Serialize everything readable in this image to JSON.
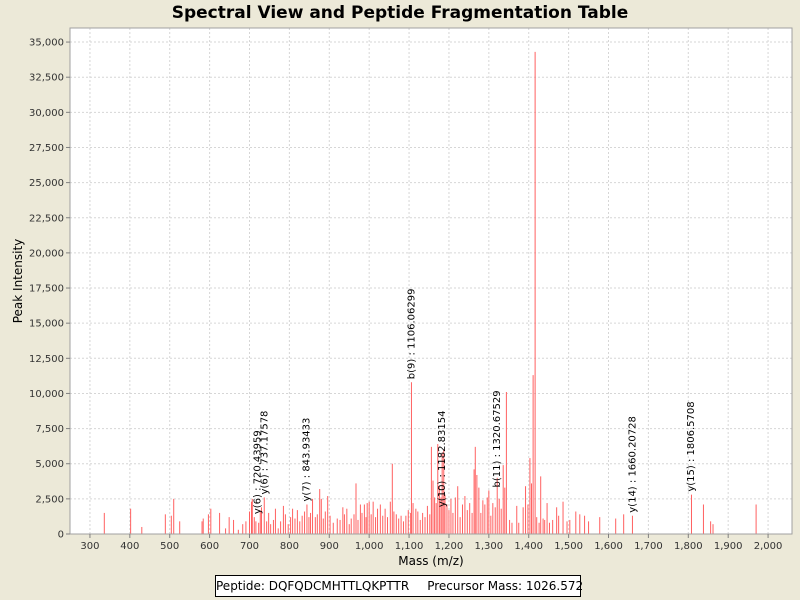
{
  "chart_data": {
    "type": "bar",
    "title": "Spectral View and Peptide Fragmentation Table",
    "xlabel": "Mass (m/z)",
    "ylabel": "Peak Intensity",
    "xlim": [
      250,
      2060
    ],
    "ylim": [
      0,
      36000
    ],
    "x_ticks": [
      300,
      400,
      500,
      600,
      700,
      800,
      900,
      1000,
      1100,
      1200,
      1300,
      1400,
      1500,
      1600,
      1700,
      1800,
      1900,
      2000
    ],
    "x_tick_labels": [
      "300",
      "400",
      "500",
      "600",
      "700",
      "800",
      "900",
      "1,000",
      "1,100",
      "1,200",
      "1,300",
      "1,400",
      "1,500",
      "1,600",
      "1,700",
      "1,800",
      "1,900",
      "2,000"
    ],
    "y_ticks": [
      0,
      2500,
      5000,
      7500,
      10000,
      12500,
      15000,
      17500,
      20000,
      22500,
      25000,
      27500,
      30000,
      32500,
      35000
    ],
    "y_tick_labels": [
      "0",
      "2,500",
      "5,000",
      "7,500",
      "10,000",
      "12,500",
      "15,000",
      "17,500",
      "20,000",
      "22,500",
      "25,000",
      "27,500",
      "30,000",
      "32,500",
      "35,000"
    ],
    "grid": true,
    "bar_color": "#ff6060",
    "peaks": [
      [
        336,
        1500
      ],
      [
        402,
        1800
      ],
      [
        430,
        500
      ],
      [
        489,
        1400
      ],
      [
        504,
        1300
      ],
      [
        510,
        2500
      ],
      [
        525,
        900
      ],
      [
        581,
        900
      ],
      [
        584,
        1100
      ],
      [
        597,
        1400
      ],
      [
        603,
        1800
      ],
      [
        625,
        1500
      ],
      [
        640,
        400
      ],
      [
        649,
        1200
      ],
      [
        660,
        1000
      ],
      [
        672,
        300
      ],
      [
        683,
        700
      ],
      [
        691,
        900
      ],
      [
        700,
        1600
      ],
      [
        705,
        2300
      ],
      [
        707,
        2500
      ],
      [
        712,
        1200
      ],
      [
        716,
        900
      ],
      [
        723,
        800
      ],
      [
        727,
        1600
      ],
      [
        730,
        1900
      ],
      [
        737,
        2600
      ],
      [
        743,
        900
      ],
      [
        748,
        1500
      ],
      [
        753,
        700
      ],
      [
        760,
        1000
      ],
      [
        765,
        1800
      ],
      [
        772,
        400
      ],
      [
        778,
        900
      ],
      [
        785,
        2000
      ],
      [
        790,
        1400
      ],
      [
        797,
        700
      ],
      [
        803,
        1200
      ],
      [
        808,
        1800
      ],
      [
        814,
        1100
      ],
      [
        820,
        1700
      ],
      [
        826,
        900
      ],
      [
        832,
        1300
      ],
      [
        838,
        1600
      ],
      [
        844,
        2100
      ],
      [
        849,
        1200
      ],
      [
        853,
        1500
      ],
      [
        858,
        2500
      ],
      [
        865,
        1200
      ],
      [
        870,
        1400
      ],
      [
        876,
        3200
      ],
      [
        880,
        2500
      ],
      [
        885,
        1100
      ],
      [
        890,
        1600
      ],
      [
        896,
        2700
      ],
      [
        902,
        1300
      ],
      [
        910,
        800
      ],
      [
        920,
        1100
      ],
      [
        927,
        1000
      ],
      [
        934,
        1900
      ],
      [
        938,
        1400
      ],
      [
        944,
        1800
      ],
      [
        950,
        700
      ],
      [
        955,
        1100
      ],
      [
        962,
        1400
      ],
      [
        967,
        3600
      ],
      [
        972,
        1000
      ],
      [
        978,
        2100
      ],
      [
        982,
        1500
      ],
      [
        988,
        2100
      ],
      [
        992,
        1200
      ],
      [
        995,
        2200
      ],
      [
        1000,
        2300
      ],
      [
        1005,
        1400
      ],
      [
        1010,
        2300
      ],
      [
        1016,
        1200
      ],
      [
        1021,
        1800
      ],
      [
        1028,
        2100
      ],
      [
        1034,
        1300
      ],
      [
        1040,
        1800
      ],
      [
        1046,
        1200
      ],
      [
        1053,
        2300
      ],
      [
        1058,
        5000
      ],
      [
        1062,
        1600
      ],
      [
        1068,
        1400
      ],
      [
        1074,
        1100
      ],
      [
        1080,
        1300
      ],
      [
        1086,
        900
      ],
      [
        1092,
        1300
      ],
      [
        1098,
        1700
      ],
      [
        1104,
        1500
      ],
      [
        1106,
        10800
      ],
      [
        1110,
        2200
      ],
      [
        1117,
        1800
      ],
      [
        1122,
        1600
      ],
      [
        1128,
        1000
      ],
      [
        1134,
        1500
      ],
      [
        1140,
        1200
      ],
      [
        1146,
        2000
      ],
      [
        1152,
        1400
      ],
      [
        1156,
        6200
      ],
      [
        1160,
        3800
      ],
      [
        1164,
        2600
      ],
      [
        1168,
        2200
      ],
      [
        1172,
        6400
      ],
      [
        1176,
        3400
      ],
      [
        1180,
        2600
      ],
      [
        1183,
        5800
      ],
      [
        1187,
        6000
      ],
      [
        1190,
        2800
      ],
      [
        1195,
        2100
      ],
      [
        1200,
        1700
      ],
      [
        1205,
        2500
      ],
      [
        1210,
        1500
      ],
      [
        1216,
        2600
      ],
      [
        1222,
        3400
      ],
      [
        1228,
        1200
      ],
      [
        1234,
        2100
      ],
      [
        1240,
        2700
      ],
      [
        1246,
        1700
      ],
      [
        1252,
        2200
      ],
      [
        1258,
        1500
      ],
      [
        1263,
        4600
      ],
      [
        1266,
        6200
      ],
      [
        1270,
        4200
      ],
      [
        1275,
        3300
      ],
      [
        1280,
        1500
      ],
      [
        1285,
        2400
      ],
      [
        1290,
        2100
      ],
      [
        1296,
        2600
      ],
      [
        1300,
        3100
      ],
      [
        1305,
        1300
      ],
      [
        1310,
        2200
      ],
      [
        1316,
        1900
      ],
      [
        1321,
        4000
      ],
      [
        1326,
        2500
      ],
      [
        1331,
        1800
      ],
      [
        1336,
        4900
      ],
      [
        1340,
        3300
      ],
      [
        1344,
        10100
      ],
      [
        1352,
        1000
      ],
      [
        1358,
        800
      ],
      [
        1370,
        2000
      ],
      [
        1375,
        800
      ],
      [
        1386,
        1900
      ],
      [
        1392,
        3400
      ],
      [
        1398,
        2100
      ],
      [
        1403,
        5400
      ],
      [
        1407,
        3600
      ],
      [
        1411,
        11300
      ],
      [
        1416,
        34300
      ],
      [
        1420,
        1200
      ],
      [
        1426,
        800
      ],
      [
        1430,
        4100
      ],
      [
        1436,
        1100
      ],
      [
        1440,
        1000
      ],
      [
        1446,
        2200
      ],
      [
        1452,
        800
      ],
      [
        1460,
        1000
      ],
      [
        1470,
        1900
      ],
      [
        1475,
        1300
      ],
      [
        1486,
        2300
      ],
      [
        1496,
        900
      ],
      [
        1503,
        1000
      ],
      [
        1518,
        1600
      ],
      [
        1528,
        1400
      ],
      [
        1540,
        1300
      ],
      [
        1550,
        900
      ],
      [
        1578,
        1200
      ],
      [
        1618,
        1100
      ],
      [
        1638,
        1400
      ],
      [
        1660,
        1300
      ],
      [
        1808,
        2800
      ],
      [
        1838,
        2100
      ],
      [
        1856,
        900
      ],
      [
        1862,
        700
      ],
      [
        1970,
        2100
      ]
    ],
    "annotations": [
      {
        "label": "y(6) : 720.43959",
        "x": 720,
        "y": 1200
      },
      {
        "label": "y(6) : 737.17578",
        "x": 737,
        "y": 2600
      },
      {
        "label": "y(7) : 843.93433",
        "x": 843,
        "y": 2100
      },
      {
        "label": "b(9) : 1106.06299",
        "x": 1106,
        "y": 10800
      },
      {
        "label": "y(10) : 1182.83154",
        "x": 1183,
        "y": 1700
      },
      {
        "label": "b(11) : 1320.67529",
        "x": 1321,
        "y": 3100
      },
      {
        "label": "y(14) : 1660.20728",
        "x": 1660,
        "y": 1300
      },
      {
        "label": "y(15) : 1806.5708",
        "x": 1807,
        "y": 2800
      }
    ]
  },
  "footer": {
    "peptide_label": "Peptide: DQFQDCMHTTLQKPTTR",
    "precursor_label": "Precursor Mass: 1026.572"
  }
}
